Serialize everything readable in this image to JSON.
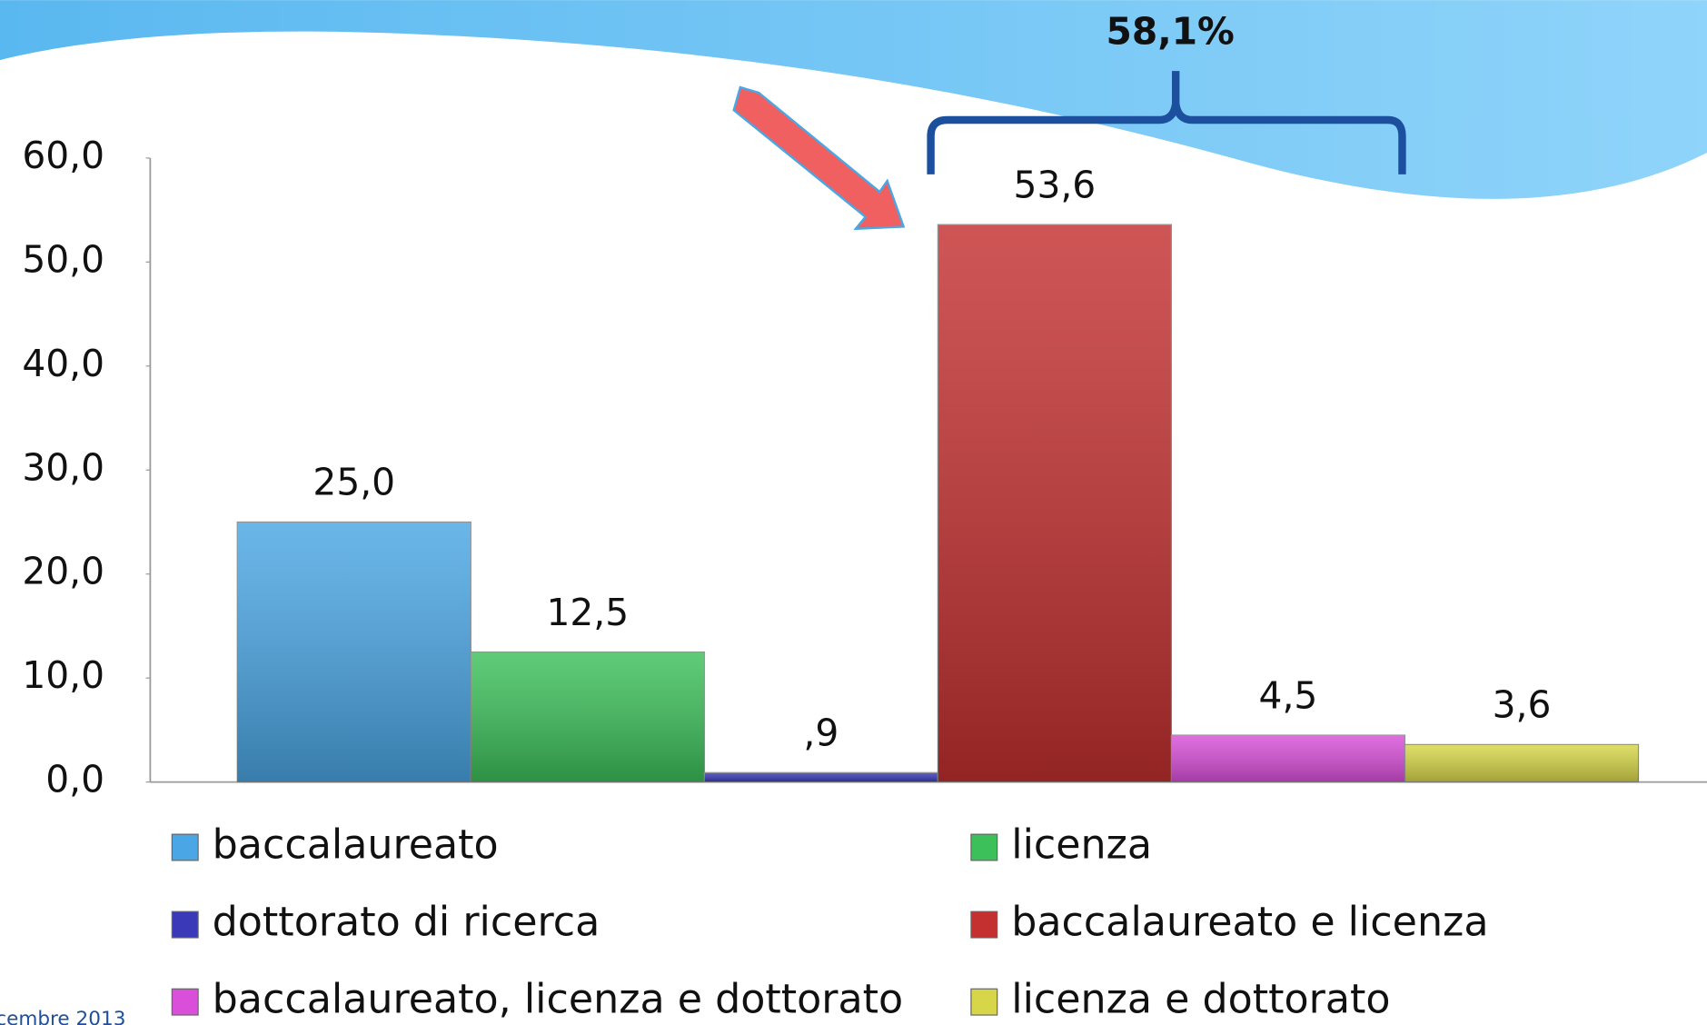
{
  "chart_data": {
    "type": "bar",
    "annotation": "58,1%",
    "footer": "cembre 2013",
    "categories": [
      null
    ],
    "series": [
      {
        "name": "baccalaureato",
        "color": "#4aa6e4",
        "values": [
          25.0
        ],
        "value_labels": [
          "25,0"
        ]
      },
      {
        "name": "licenza",
        "color": "#3cc05a",
        "values": [
          12.5
        ],
        "value_labels": [
          "12,5"
        ]
      },
      {
        "name": "dottorato di ricerca",
        "color": "#3a3ab8",
        "values": [
          0.9
        ],
        "value_labels": [
          ",9"
        ]
      },
      {
        "name": "baccalaureato e licenza",
        "color": "#c43030",
        "values": [
          53.6
        ],
        "value_labels": [
          "53,6"
        ]
      },
      {
        "name": "baccalaureato, licenza e dottorato",
        "color": "#d94fd9",
        "values": [
          4.5
        ],
        "value_labels": [
          "4,5"
        ]
      },
      {
        "name": "licenza e dottorato",
        "color": "#d6d648",
        "values": [
          3.6
        ],
        "value_labels": [
          "3,6"
        ]
      }
    ],
    "ylim": [
      0,
      60
    ],
    "yticks": [
      {
        "value": 0,
        "label": "0,0"
      },
      {
        "value": 10,
        "label": "10,0"
      },
      {
        "value": 20,
        "label": "20,0"
      },
      {
        "value": 30,
        "label": "30,0"
      },
      {
        "value": 40,
        "label": "40,0"
      },
      {
        "value": 50,
        "label": "50,0"
      },
      {
        "value": 60,
        "label": "60,0"
      }
    ],
    "legend": "bottom"
  }
}
